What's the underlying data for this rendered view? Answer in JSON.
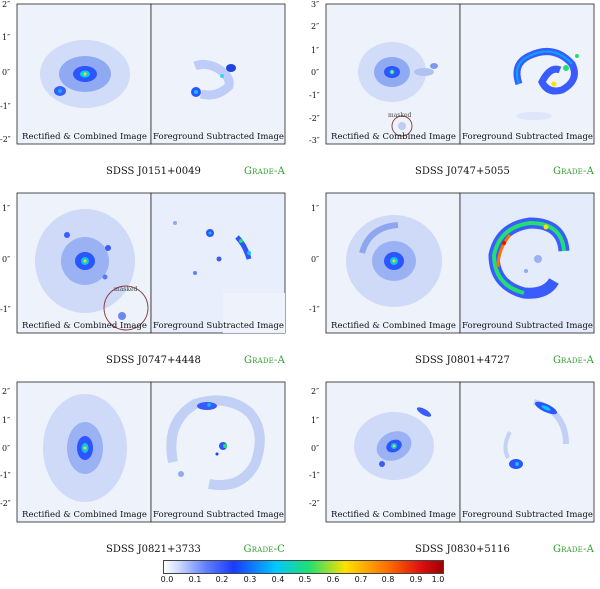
{
  "figure": {
    "left_label": "Rectified & Combined Image",
    "right_label": "Foreground Subtracted Image",
    "masked_label": "masked",
    "panels": [
      {
        "name": "SDSS J0151+0049",
        "grade": "Grade-A",
        "yticks": [
          "2″",
          "1″",
          "0″",
          "-1″",
          "-2″"
        ],
        "masked": false
      },
      {
        "name": "SDSS J0747+5055",
        "grade": "Grade-A",
        "yticks": [
          "3″",
          "2″",
          "1″",
          "0″",
          "-1″",
          "-2″",
          "-3″"
        ],
        "masked": true
      },
      {
        "name": "SDSS J0747+4448",
        "grade": "Grade-A",
        "yticks": [
          "1″",
          "0″",
          "-1″"
        ],
        "masked": true
      },
      {
        "name": "SDSS J0801+4727",
        "grade": "Grade-A",
        "yticks": [
          "1″",
          "0″",
          "-1″"
        ],
        "masked": false
      },
      {
        "name": "SDSS J0821+3733",
        "grade": "Grade-C",
        "yticks": [
          "2″",
          "1″",
          "0″",
          "-1″",
          "-2″"
        ],
        "masked": false
      },
      {
        "name": "SDSS J0830+5116",
        "grade": "Grade-A",
        "yticks": [
          "2″",
          "1″",
          "0″",
          "-1″",
          "-2″"
        ],
        "masked": false
      }
    ],
    "colorbar": {
      "ticks": [
        "0.0",
        "0.1",
        "0.2",
        "0.3",
        "0.4",
        "0.5",
        "0.6",
        "0.7",
        "0.8",
        "0.9",
        "1.0"
      ],
      "range": [
        0.0,
        1.0
      ]
    }
  }
}
